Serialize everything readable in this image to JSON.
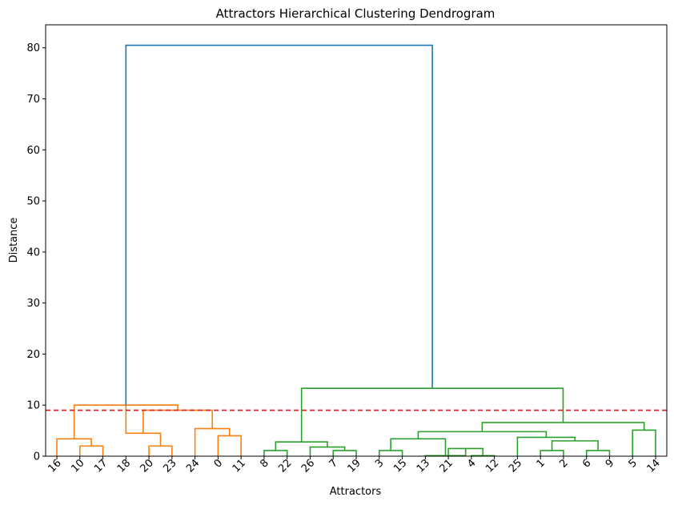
{
  "chart_data": {
    "type": "dendrogram",
    "title": "Attractors Hierarchical Clustering Dendrogram",
    "xlabel": "Attractors",
    "ylabel": "Distance",
    "ylim": [
      0,
      84.5
    ],
    "yticks": [
      0,
      10,
      20,
      30,
      40,
      50,
      60,
      70,
      80
    ],
    "threshold": {
      "value": 9.0,
      "color": "#d62728",
      "style": "dashed"
    },
    "leaves": [
      "16",
      "10",
      "17",
      "18",
      "20",
      "23",
      "24",
      "0",
      "11",
      "8",
      "22",
      "26",
      "7",
      "19",
      "3",
      "15",
      "13",
      "21",
      "4",
      "12",
      "25",
      "1",
      "2",
      "6",
      "9",
      "5",
      "14"
    ],
    "links": [
      {
        "left": 1,
        "right": 2,
        "height": 2.0,
        "color": "#ff7f0e"
      },
      {
        "left": 0,
        "right": 1.5,
        "height": 3.4,
        "color": "#ff7f0e"
      },
      {
        "left": 4,
        "right": 5,
        "height": 2.0,
        "color": "#ff7f0e"
      },
      {
        "left": 3,
        "right": 4.5,
        "height": 4.5,
        "color": "#ff7f0e"
      },
      {
        "left": 7,
        "right": 8,
        "height": 4.0,
        "color": "#ff7f0e"
      },
      {
        "left": 6,
        "right": 7.5,
        "height": 5.4,
        "color": "#ff7f0e"
      },
      {
        "left": 3.75,
        "right": 6.75,
        "height": 9.0,
        "color": "#ff7f0e"
      },
      {
        "left": 0.75,
        "right": 5.25,
        "height": 10.0,
        "color": "#ff7f0e"
      },
      {
        "left": 9,
        "right": 10,
        "height": 1.1,
        "color": "#2ca02c"
      },
      {
        "left": 12,
        "right": 13,
        "height": 1.1,
        "color": "#2ca02c"
      },
      {
        "left": 11,
        "right": 12.5,
        "height": 1.8,
        "color": "#2ca02c"
      },
      {
        "left": 9.5,
        "right": 11.75,
        "height": 2.8,
        "color": "#2ca02c"
      },
      {
        "left": 14,
        "right": 15,
        "height": 1.1,
        "color": "#2ca02c"
      },
      {
        "left": 18,
        "right": 19,
        "height": 0.1,
        "color": "#2ca02c"
      },
      {
        "left": 17,
        "right": 18.5,
        "height": 1.5,
        "color": "#2ca02c"
      },
      {
        "left": 16,
        "right": 17.75,
        "height": 0.1,
        "color": "#2ca02c"
      },
      {
        "left": 14.5,
        "right": 16.875,
        "height": 3.4,
        "color": "#2ca02c"
      },
      {
        "left": 21,
        "right": 22,
        "height": 1.1,
        "color": "#2ca02c"
      },
      {
        "left": 23,
        "right": 24,
        "height": 1.1,
        "color": "#2ca02c"
      },
      {
        "left": 21.5,
        "right": 23.5,
        "height": 3.0,
        "color": "#2ca02c"
      },
      {
        "left": 20,
        "right": 22.5,
        "height": 3.7,
        "color": "#2ca02c"
      },
      {
        "left": 15.6875,
        "right": 21.25,
        "height": 4.8,
        "color": "#2ca02c"
      },
      {
        "left": 25,
        "right": 26,
        "height": 5.1,
        "color": "#2ca02c"
      },
      {
        "left": 18.46875,
        "right": 25.5,
        "height": 6.6,
        "color": "#2ca02c"
      },
      {
        "left": 10.625,
        "right": 21.984375,
        "height": 13.3,
        "color": "#2ca02c"
      },
      {
        "left": 3.0,
        "right": 16.3046875,
        "height": 80.5,
        "color": "#1f77b4"
      }
    ]
  }
}
